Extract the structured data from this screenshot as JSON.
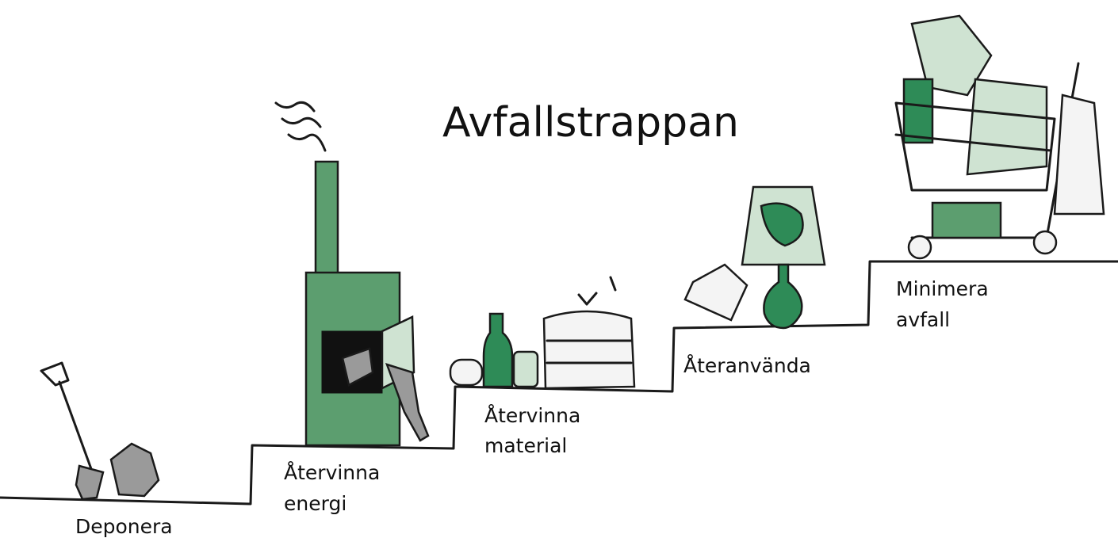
{
  "title": "Avfallstrappan",
  "steps": [
    {
      "lines": [
        "Deponera"
      ]
    },
    {
      "lines": [
        "Återvinna",
        "energi"
      ]
    },
    {
      "lines": [
        "Återvinna",
        "material"
      ]
    },
    {
      "lines": [
        "Återanvända"
      ]
    },
    {
      "lines": [
        "Minimera",
        "avfall"
      ]
    }
  ]
}
